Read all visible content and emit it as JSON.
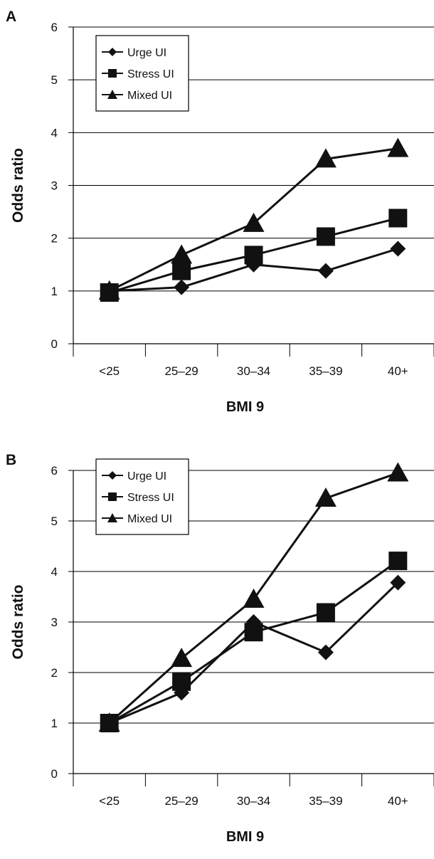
{
  "chart_data": [
    {
      "type": "line",
      "panel_label": "A",
      "title": "",
      "xlabel": "BMI 9",
      "ylabel": "Odds ratio",
      "categories": [
        "<25",
        "25–29",
        "30–34",
        "35–39",
        "40+"
      ],
      "yticks": [
        "0",
        "1",
        "2",
        "3",
        "4",
        "5",
        "6"
      ],
      "ylim": [
        0,
        6
      ],
      "grid": true,
      "legend_position": "top-left",
      "series": [
        {
          "name": "Urge UI",
          "marker": "diamond",
          "values": [
            1.0,
            1.07,
            1.5,
            1.38,
            1.8
          ]
        },
        {
          "name": "Stress UI",
          "marker": "square",
          "values": [
            0.97,
            1.38,
            1.68,
            2.03,
            2.38
          ]
        },
        {
          "name": "Mixed UI",
          "marker": "triangle",
          "values": [
            1.0,
            1.68,
            2.28,
            3.5,
            3.7
          ]
        }
      ]
    },
    {
      "type": "line",
      "panel_label": "B",
      "title": "",
      "xlabel": "BMI 9",
      "ylabel": "Odds ratio",
      "categories": [
        "<25",
        "25–29",
        "30–34",
        "35–39",
        "40+"
      ],
      "yticks": [
        "0",
        "1",
        "2",
        "3",
        "4",
        "5",
        "6"
      ],
      "ylim": [
        0,
        6
      ],
      "grid": true,
      "legend_position": "top-left",
      "series": [
        {
          "name": "Urge UI",
          "marker": "diamond",
          "values": [
            1.0,
            1.6,
            3.0,
            2.4,
            3.78
          ]
        },
        {
          "name": "Stress UI",
          "marker": "square",
          "values": [
            1.0,
            1.82,
            2.8,
            3.19,
            4.21
          ]
        },
        {
          "name": "Mixed UI",
          "marker": "triangle",
          "values": [
            1.0,
            2.28,
            3.45,
            5.45,
            5.95
          ]
        }
      ]
    }
  ],
  "colors": {
    "line": "#111111",
    "grid": "#000000",
    "background": "#ffffff"
  }
}
